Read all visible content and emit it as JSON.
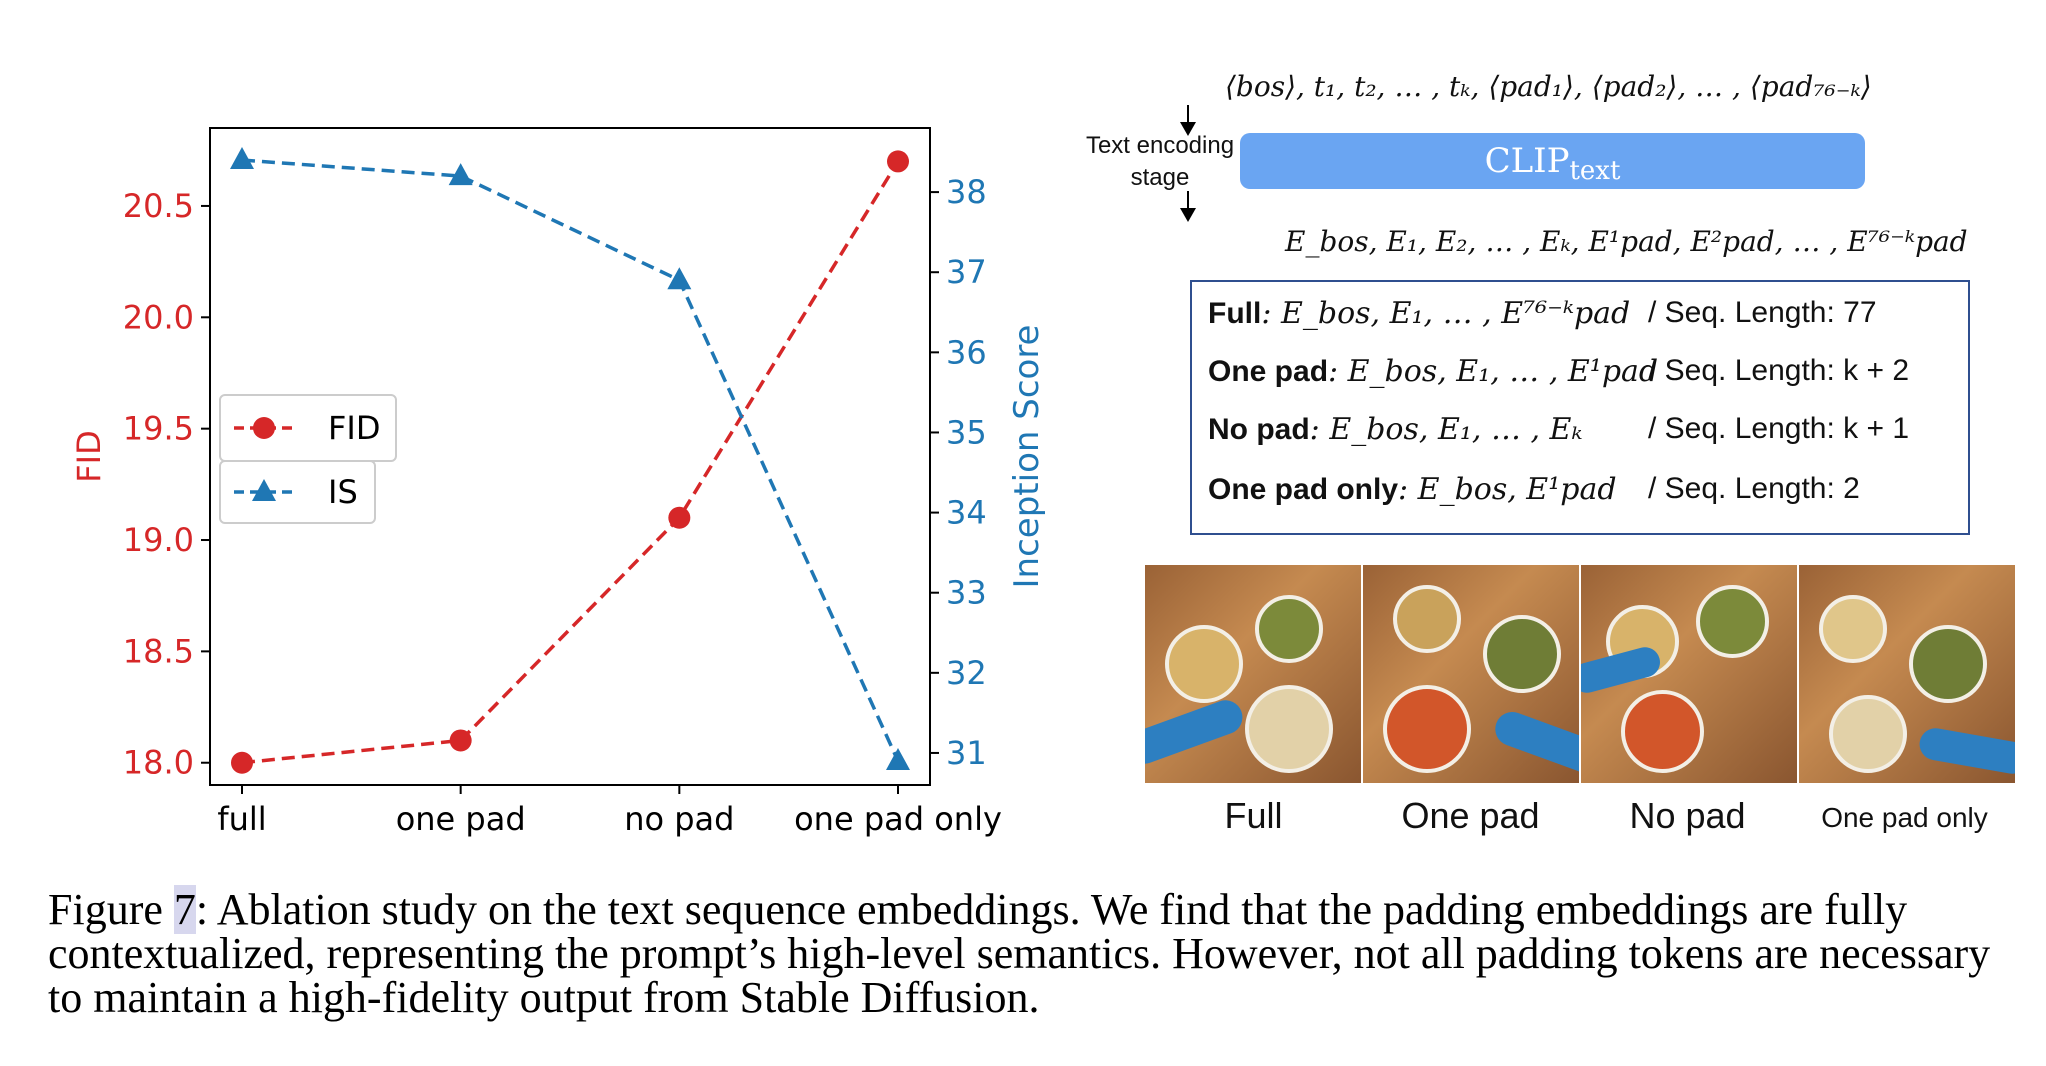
{
  "chart_data": {
    "type": "line",
    "categories": [
      "full",
      "one pad",
      "no pad",
      "one pad only"
    ],
    "series": [
      {
        "name": "FID",
        "axis": "left",
        "values": [
          18.0,
          18.1,
          19.1,
          20.7
        ],
        "color": "#d62728",
        "marker": "circle",
        "linestyle": "dashed"
      },
      {
        "name": "IS",
        "axis": "right",
        "values": [
          38.4,
          38.2,
          36.9,
          30.9
        ],
        "color": "#1f77b4",
        "marker": "triangle",
        "linestyle": "dashed"
      }
    ],
    "ylabel": "FID",
    "ylabel_right": "Inception Score",
    "ylim": [
      17.9,
      20.85
    ],
    "ylim_right": [
      30.6,
      38.8
    ],
    "yticks": [
      "18.0",
      "18.5",
      "19.0",
      "19.5",
      "20.0",
      "20.5"
    ],
    "yticks_right": [
      "31",
      "32",
      "33",
      "34",
      "35",
      "36",
      "37",
      "38"
    ],
    "legend": "center-left",
    "grid": false
  },
  "diagram": {
    "input_sequence": "⟨bos⟩, t₁, t₂, … , tₖ, ⟨pad₁⟩, ⟨pad₂⟩, … , ⟨pad₇₆₋ₖ⟩",
    "stage_label": "Text encoding stage",
    "clip_label": "CLIP",
    "clip_sub": "text",
    "output_sequence": "E_bos, E₁, E₂, … , Eₖ, E¹pad, E²pad, … , E⁷⁶⁻ᵏpad",
    "rows": [
      {
        "name": "Full",
        "embeddings": ": E_bos, E₁, … , E⁷⁶⁻ᵏpad",
        "length": "/ Seq. Length: 77"
      },
      {
        "name": "One pad",
        "embeddings": ": E_bos, E₁, … , E¹pad",
        "length": "/ Seq. Length: k + 2"
      },
      {
        "name": "No pad",
        "embeddings": ": E_bos, E₁, … , Eₖ",
        "length": "/ Seq. Length: k + 1"
      },
      {
        "name": "One pad only",
        "embeddings": ": E_bos, E¹pad",
        "length": "/ Seq. Length: 2"
      }
    ],
    "image_labels": [
      "Full",
      "One pad",
      "No pad",
      "One pad only"
    ]
  },
  "caption": {
    "prefix": "Figure ",
    "number": "7",
    "text": ": Ablation study on the text sequence embeddings. We find that the padding embeddings are fully contextualized, representing the prompt’s high-level semantics. However, not all padding tokens are necessary to maintain a high-fidelity output from Stable Diffusion."
  }
}
